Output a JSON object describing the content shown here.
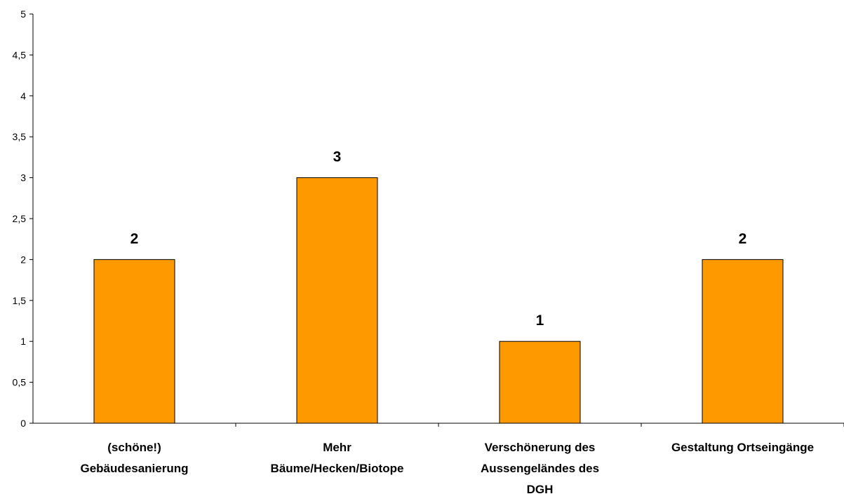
{
  "chart_data": {
    "type": "bar",
    "categories": [
      [
        "(schöne!)",
        "Gebäudesanierung"
      ],
      [
        "Mehr",
        "Bäume/Hecken/Biotope"
      ],
      [
        "Verschönerung des",
        "Aussengeländes des",
        "DGH"
      ],
      [
        "Gestaltung Ortseingänge"
      ]
    ],
    "values": [
      2,
      3,
      1,
      2
    ],
    "data_labels": [
      "2",
      "3",
      "1",
      "2"
    ],
    "y_ticks": [
      "0",
      "0,5",
      "1",
      "1,5",
      "2",
      "2,5",
      "3",
      "3,5",
      "4",
      "4,5",
      "5"
    ],
    "ylim": [
      0,
      5
    ],
    "grid": false,
    "legend": "none",
    "bar_color": "#FF9900",
    "bar_stroke": "#000000"
  }
}
